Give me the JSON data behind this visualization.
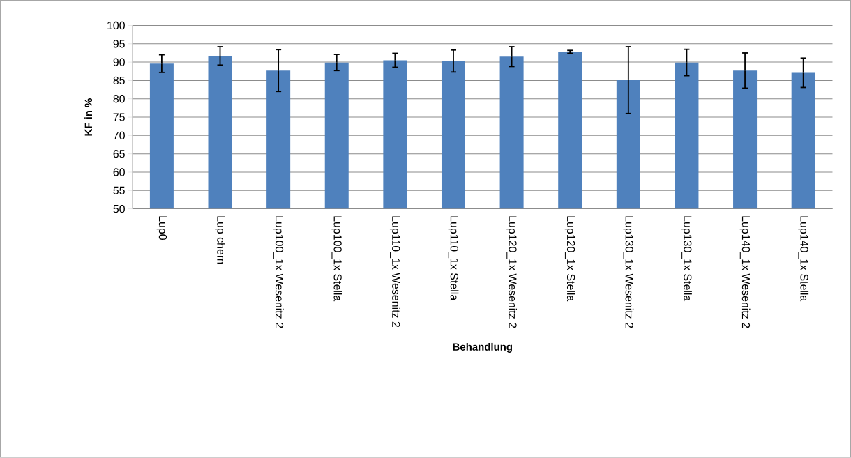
{
  "chart_data": {
    "type": "bar",
    "xlabel": "Behandlung",
    "ylabel": "KF in %",
    "categories": [
      "Lup0",
      "Lup chem",
      "Lup100_1x  Wesenitz 2",
      "Lup100_1x  Stella",
      "Lup110_1x Wesenitz 2",
      "Lup110_1x Stella",
      "Lup120_1x Wesenitz 2",
      "Lup120_1x Stella",
      "Lup130_1x Wesenitz 2",
      "Lup130_1x Stella",
      "Lup140_1x Wesenitz 2",
      "Lup140_1x Stella"
    ],
    "values": [
      89.6,
      91.7,
      87.7,
      89.9,
      90.5,
      90.3,
      91.5,
      92.8,
      85.1,
      89.9,
      87.7,
      87.1
    ],
    "errors": [
      2.4,
      2.5,
      5.7,
      2.2,
      1.9,
      3.0,
      2.7,
      0.4,
      9.1,
      3.6,
      4.8,
      4.0
    ],
    "color": "#4f81bd",
    "ylim": [
      50,
      100
    ],
    "yticks": [
      50,
      55,
      60,
      65,
      70,
      75,
      80,
      85,
      90,
      95,
      100
    ],
    "grid": "y"
  }
}
